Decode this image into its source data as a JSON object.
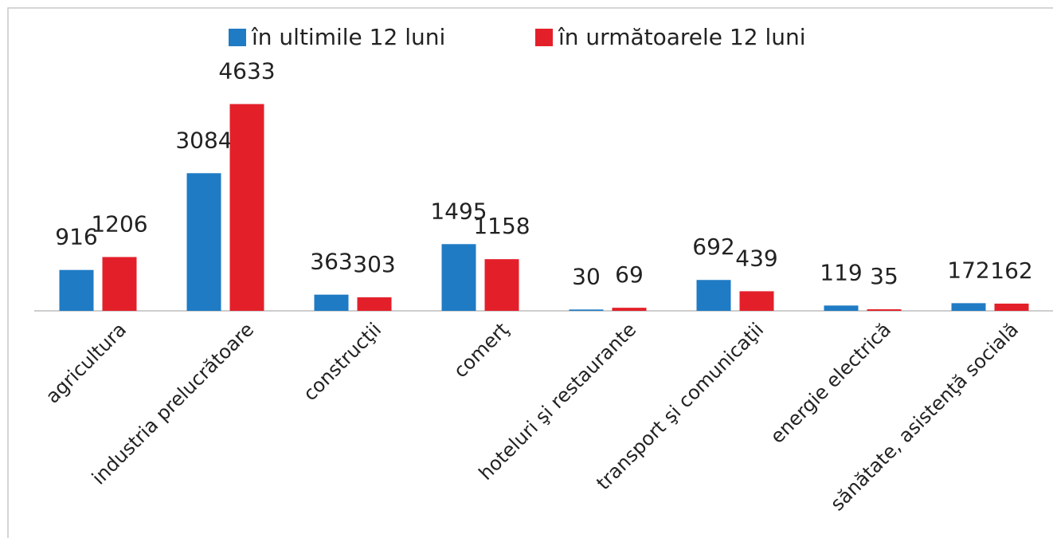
{
  "chart_data": {
    "type": "bar",
    "categories": [
      "agricultura",
      "industria prelucrătoare",
      "construcţii",
      "comerţ",
      "hoteluri şi restaurante",
      "transport şi comunicaţii",
      "energie electrică",
      "sănătate, asistenţă socială"
    ],
    "series": [
      {
        "name": "în ultimile 12 luni",
        "color": "#1f7bc4",
        "values": [
          916,
          3084,
          363,
          1495,
          30,
          692,
          119,
          172
        ]
      },
      {
        "name": "în următoarele 12 luni",
        "color": "#e3202a",
        "values": [
          1206,
          4633,
          303,
          1158,
          69,
          439,
          35,
          162
        ]
      }
    ],
    "ylim": [
      0,
      5000
    ]
  }
}
